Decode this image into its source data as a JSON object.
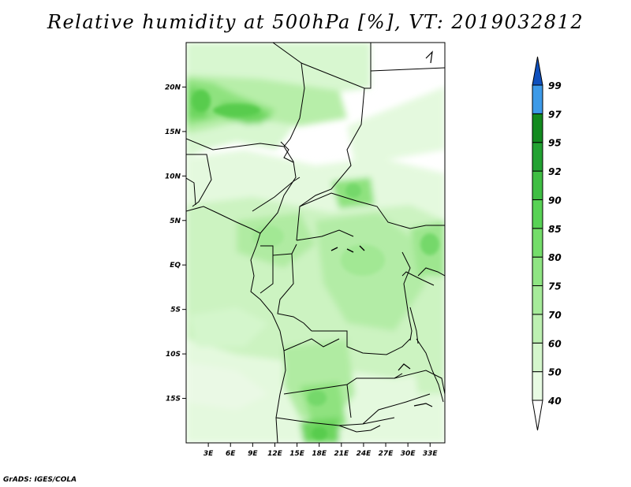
{
  "title": "Relative humidity at 500hPa [%], VT: 2019032812",
  "credit": "GrADS: IGES/COLA",
  "map": {
    "lat_labels": [
      "20N",
      "15N",
      "10N",
      "5N",
      "EQ",
      "5S",
      "10S",
      "15S"
    ],
    "lon_labels": [
      "3E",
      "6E",
      "9E",
      "12E",
      "15E",
      "18E",
      "21E",
      "24E",
      "27E",
      "30E",
      "33E"
    ],
    "lat_values": [
      20,
      15,
      10,
      5,
      0,
      -5,
      -10,
      -15
    ],
    "lon_values": [
      3,
      6,
      9,
      12,
      15,
      18,
      21,
      24,
      27,
      30,
      33
    ],
    "lon_range": [
      0,
      35
    ],
    "lat_range": [
      -20,
      25
    ]
  },
  "colorbar": {
    "labels": [
      "40",
      "50",
      "60",
      "70",
      "75",
      "80",
      "85",
      "90",
      "92",
      "95",
      "97",
      "99"
    ],
    "colors": [
      "#ffffff",
      "#e8fbe3",
      "#d4f6cc",
      "#bdf0b2",
      "#a6eb9a",
      "#8fe583",
      "#74dd6a",
      "#58d255",
      "#3fbe43",
      "#22a232",
      "#128a1f",
      "#3d9ae8",
      "#1f6fd6",
      "#0f50bd"
    ]
  }
}
